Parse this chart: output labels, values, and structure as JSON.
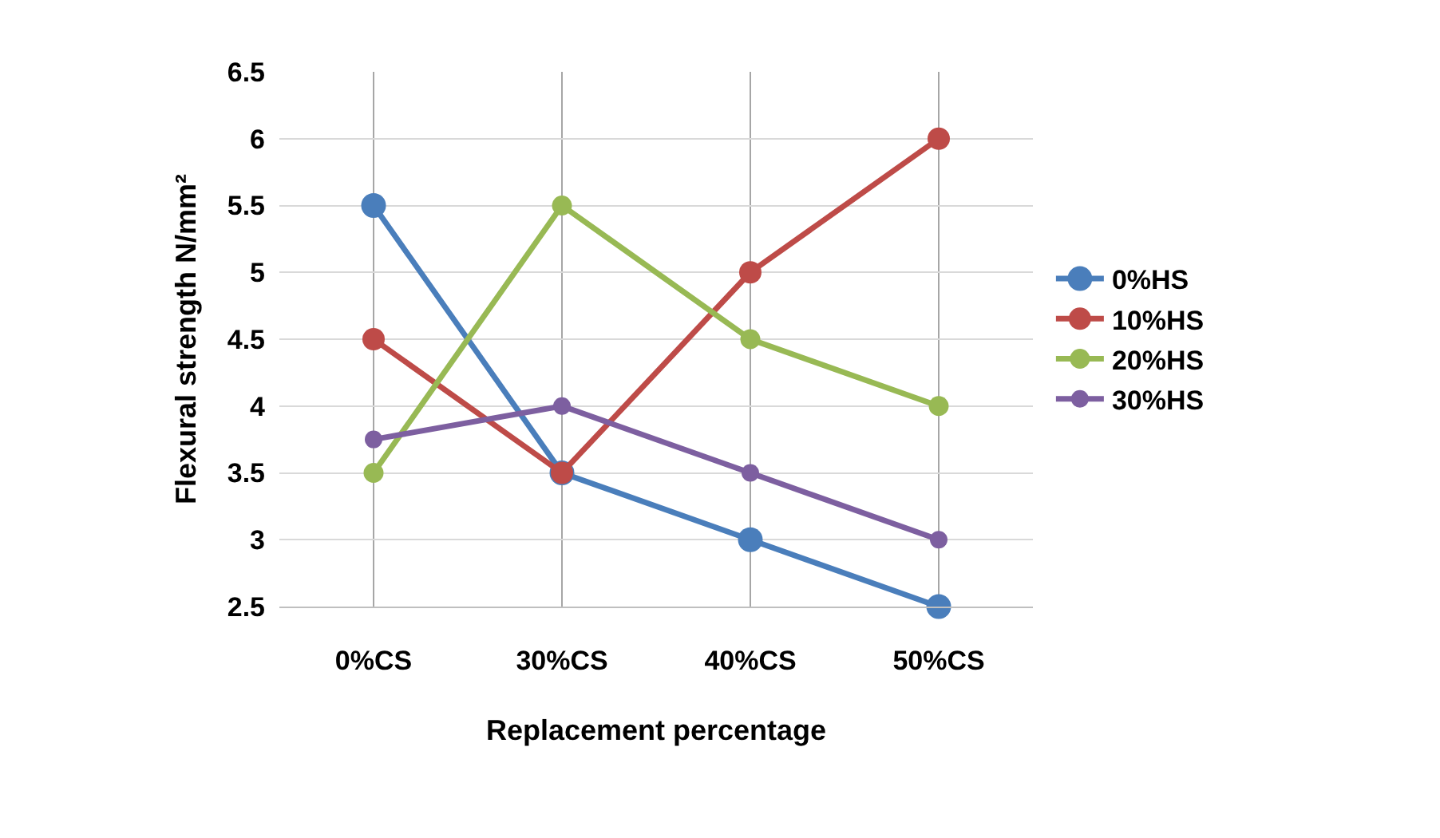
{
  "chart_data": {
    "type": "line",
    "xlabel": "Replacement percentage",
    "ylabel": "Flexural strength N/mm²",
    "categories": [
      "0%CS",
      "30%CS",
      "40%CS",
      "50%CS"
    ],
    "series": [
      {
        "name": "0%HS",
        "color": "#4a7ebb",
        "values": [
          5.5,
          3.5,
          3,
          2.5
        ]
      },
      {
        "name": "10%HS",
        "color": "#be4b48",
        "values": [
          4.5,
          3.5,
          5,
          6
        ]
      },
      {
        "name": "20%HS",
        "color": "#98b954",
        "values": [
          3.5,
          5.5,
          4.5,
          4
        ]
      },
      {
        "name": "30%HS",
        "color": "#7d5fa0",
        "values": [
          3.75,
          4,
          3.5,
          3
        ]
      }
    ],
    "ylim": [
      2.5,
      6.5
    ],
    "yticks": [
      2.5,
      3,
      3.5,
      4,
      4.5,
      5,
      5.5,
      6,
      6.5
    ],
    "grid": true,
    "legend": "right",
    "marker": "circle",
    "line_style": "solid"
  }
}
